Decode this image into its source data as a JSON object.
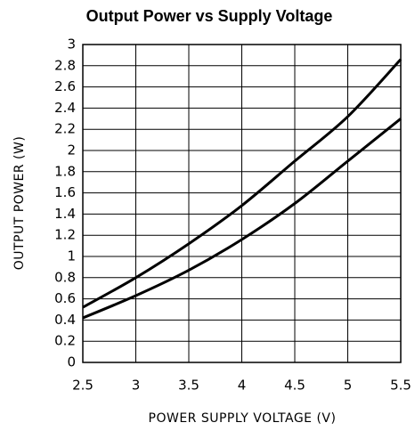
{
  "chart_data": {
    "type": "line",
    "title": "Output Power vs Supply Voltage",
    "xlabel": "POWER SUPPLY VOLTAGE (V)",
    "ylabel": "OUTPUT POWER (W)",
    "x": [
      2.5,
      3,
      3.5,
      4,
      4.5,
      5,
      5.5
    ],
    "series": [
      {
        "color": "#000000",
        "values": [
          0.52,
          0.8,
          1.12,
          1.48,
          1.9,
          2.32,
          2.86
        ]
      },
      {
        "color": "#000000",
        "values": [
          0.42,
          0.63,
          0.87,
          1.16,
          1.5,
          1.9,
          2.3
        ]
      }
    ],
    "xlim": [
      2.5,
      5.5
    ],
    "xticks": [
      2.5,
      3,
      3.5,
      4,
      4.5,
      5,
      5.5
    ],
    "ylim": [
      0,
      3
    ],
    "yticks": [
      0,
      0.2,
      0.4,
      0.6,
      0.8,
      1,
      1.2,
      1.4,
      1.6,
      1.8,
      2,
      2.2,
      2.4,
      2.6,
      2.8,
      3
    ],
    "grid": true
  }
}
